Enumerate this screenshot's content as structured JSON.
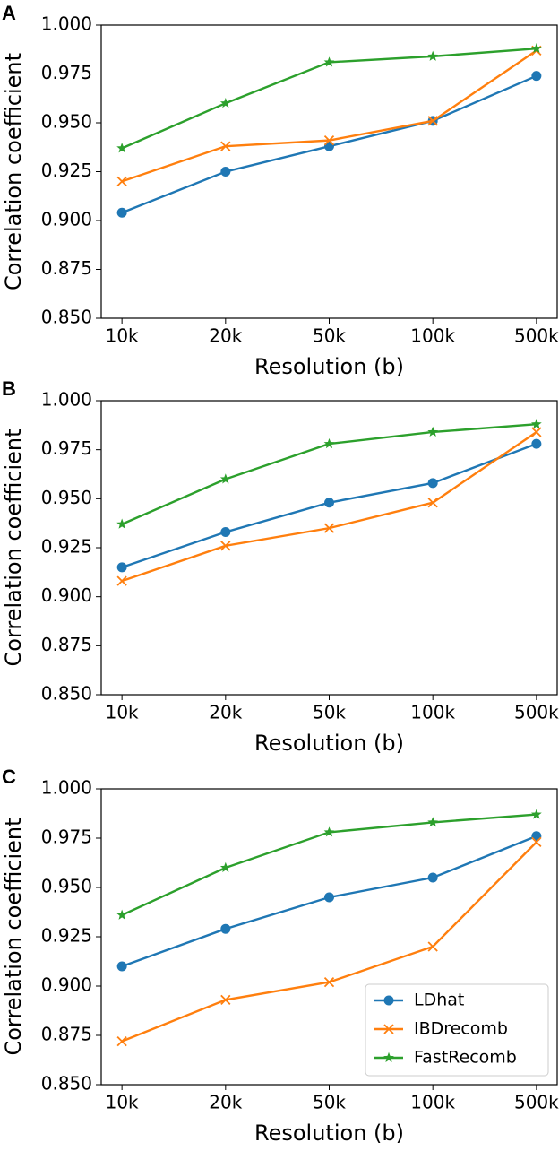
{
  "chart_data": [
    {
      "type": "line",
      "label": "A",
      "xlabel": "Resolution (b)",
      "ylabel": "Correlation coefficient",
      "categories": [
        "10k",
        "20k",
        "50k",
        "100k",
        "500k"
      ],
      "ylim": [
        0.85,
        1.0
      ],
      "yticks": [
        {
          "value": 0.85,
          "label": "0.850"
        },
        0.875,
        {
          "value": 0.9,
          "label": "0.900"
        },
        0.925,
        {
          "value": 0.95,
          "label": "0.950"
        },
        0.975,
        {
          "value": 1.0,
          "label": "1.000"
        }
      ],
      "series": [
        {
          "color": "#1f77b4",
          "marker": "o",
          "values": [
            0.904,
            0.925,
            0.938,
            0.951,
            0.974
          ]
        },
        {
          "color": "#ff7f0e",
          "marker": "x",
          "values": [
            0.92,
            0.938,
            0.941,
            0.951,
            0.987
          ]
        },
        {
          "color": "#2ca02c",
          "marker": "*",
          "values": [
            0.937,
            0.96,
            0.981,
            0.984,
            0.988
          ]
        }
      ]
    },
    {
      "type": "line",
      "label": "B",
      "xlabel": "Resolution (b)",
      "ylabel": "Correlation coefficient",
      "categories": [
        "10k",
        "20k",
        "50k",
        "100k",
        "500k"
      ],
      "ylim": [
        0.85,
        1.0
      ],
      "yticks": [
        {
          "value": 0.85,
          "label": "0.850"
        },
        0.875,
        {
          "value": 0.9,
          "label": "0.900"
        },
        0.925,
        {
          "value": 0.95,
          "label": "0.950"
        },
        0.975,
        {
          "value": 1.0,
          "label": "1.000"
        }
      ],
      "series": [
        {
          "color": "#1f77b4",
          "marker": "o",
          "values": [
            0.915,
            0.933,
            0.948,
            0.958,
            0.978
          ]
        },
        {
          "color": "#ff7f0e",
          "marker": "x",
          "values": [
            0.908,
            0.926,
            0.935,
            0.948,
            0.984
          ]
        },
        {
          "color": "#2ca02c",
          "marker": "*",
          "values": [
            0.937,
            0.96,
            0.978,
            0.984,
            0.988
          ]
        }
      ]
    },
    {
      "type": "line",
      "label": "C",
      "xlabel": "Resolution (b)",
      "ylabel": "Correlation coefficient",
      "categories": [
        "10k",
        "20k",
        "50k",
        "100k",
        "500k"
      ],
      "ylim": [
        0.85,
        1.0
      ],
      "yticks": [
        {
          "value": 0.85,
          "label": "0.850"
        },
        0.875,
        {
          "value": 0.9,
          "label": "0.900"
        },
        0.925,
        {
          "value": 0.95,
          "label": "0.950"
        },
        0.975,
        {
          "value": 1.0,
          "label": "1.000"
        }
      ],
      "legend": "lower right",
      "series": [
        {
          "name": "LDhat",
          "color": "#1f77b4",
          "marker": "o",
          "values": [
            0.91,
            0.929,
            0.945,
            0.955,
            0.976
          ]
        },
        {
          "name": "IBDrecomb",
          "color": "#ff7f0e",
          "marker": "x",
          "values": [
            0.872,
            0.893,
            0.902,
            0.92,
            0.973
          ]
        },
        {
          "name": "FastRecomb",
          "color": "#2ca02c",
          "marker": "*",
          "values": [
            0.936,
            0.96,
            0.978,
            0.983,
            0.987
          ]
        }
      ]
    }
  ]
}
